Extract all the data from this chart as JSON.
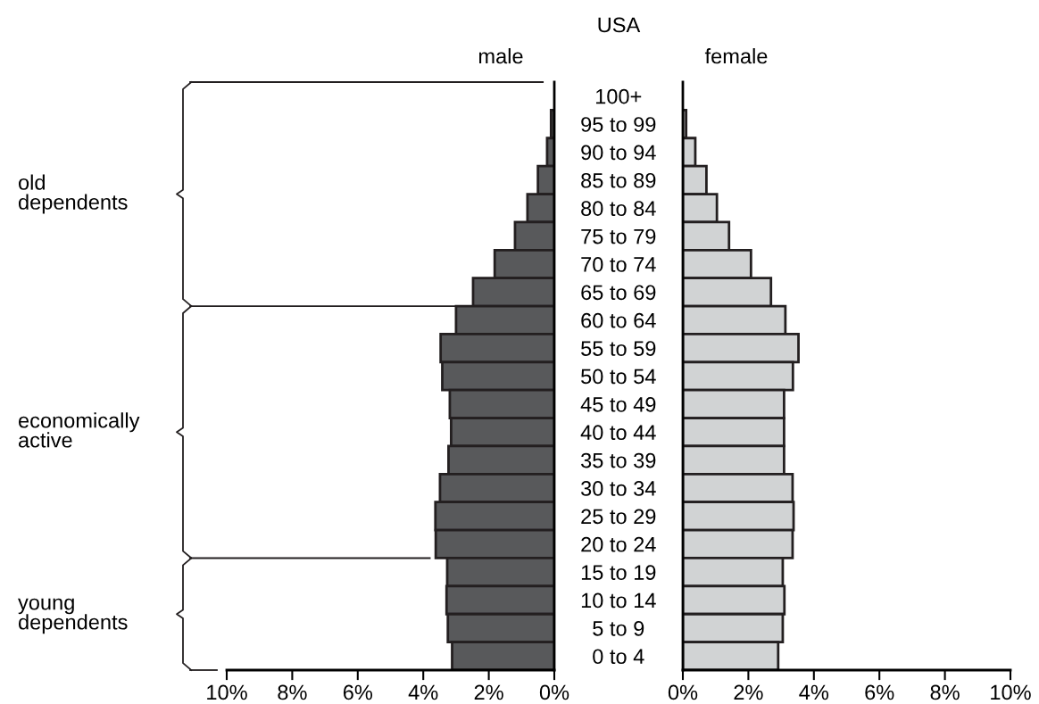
{
  "chart_data": [
    {
      "type": "bar",
      "orientation": "horizontal",
      "categories": [
        null,
        null,
        null,
        null,
        null,
        null,
        null,
        null,
        null,
        null,
        null,
        null,
        null,
        null,
        null,
        null,
        null,
        null,
        null,
        null,
        null
      ],
      "series": [
        {
          "name": "male",
          "color": "#58595b",
          "values": [
            null,
            0.1,
            0.22,
            0.5,
            0.82,
            1.2,
            1.82,
            2.48,
            3.0,
            3.47,
            3.42,
            3.19,
            3.15,
            3.23,
            3.49,
            3.63,
            3.62,
            3.27,
            3.29,
            3.25,
            3.12
          ]
        }
      ],
      "xlim": [
        10,
        0
      ],
      "xticks": [
        {
          "value": 10,
          "label": "10%"
        },
        {
          "value": 8,
          "label": "8%"
        },
        {
          "value": 6,
          "label": "6%"
        },
        {
          "value": 4,
          "label": "4%"
        },
        {
          "value": 2,
          "label": "2%"
        },
        {
          "value": 0,
          "label": "0%"
        }
      ],
      "tick_labels": "x",
      "annotations": [
        "USA",
        "old\ndependents",
        "economically\nactive",
        "young\ndependents"
      ]
    },
    {
      "type": "bar",
      "orientation": "horizontal",
      "categories": [
        "100+",
        "95 to 99",
        "90 to 94",
        "85 to 89",
        "80 to 84",
        "75 to 79",
        "70 to 74",
        "65 to 69",
        "60 to 64",
        "55 to 59",
        "50 to 54",
        "45 to 49",
        "40 to 44",
        "35 to 39",
        "30 to 34",
        "25 to 29",
        "20 to 24",
        "15 to 19",
        "10 to 14",
        "5 to 9",
        "0 to 4"
      ],
      "series": [
        {
          "name": "female",
          "color": "#d1d3d4",
          "values": [
            null,
            0.1,
            0.38,
            0.72,
            1.04,
            1.41,
            2.08,
            2.69,
            3.13,
            3.53,
            3.36,
            3.09,
            3.09,
            3.09,
            3.35,
            3.38,
            3.35,
            3.05,
            3.1,
            3.05,
            2.91
          ]
        }
      ],
      "xlim": [
        0,
        10
      ],
      "xticks": [
        {
          "value": 0,
          "label": "0%"
        },
        {
          "value": 2,
          "label": "2%"
        },
        {
          "value": 4,
          "label": "4%"
        },
        {
          "value": 6,
          "label": "6%"
        },
        {
          "value": 8,
          "label": "8%"
        },
        {
          "value": 10,
          "label": "10%"
        }
      ]
    }
  ]
}
